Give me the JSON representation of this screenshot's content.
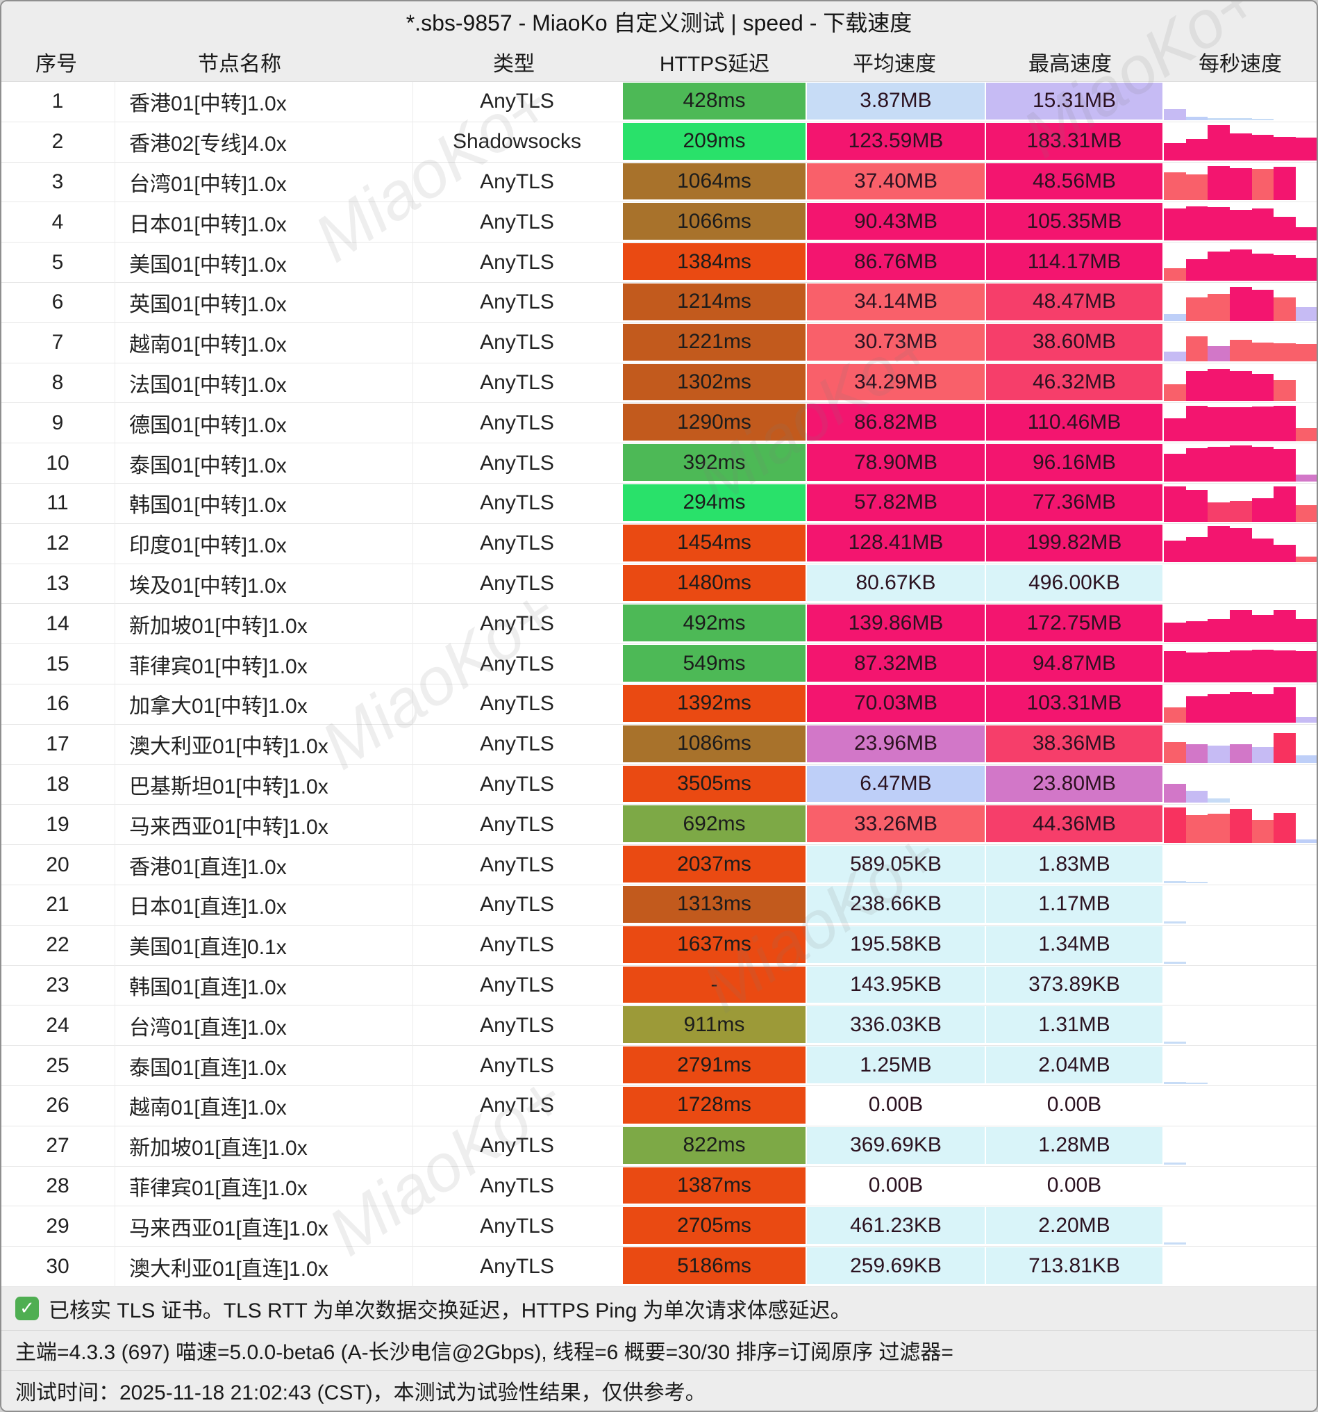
{
  "title": "*.sbs-9857 - MiaoKo 自定义测试 | speed - 下载速度",
  "columns": [
    "序号",
    "节点名称",
    "类型",
    "HTTPS延迟",
    "平均速度",
    "最高速度",
    "每秒速度"
  ],
  "watermark": {
    "text": "MiaoKo+"
  },
  "palette": {
    "g1": "#29e16a",
    "g2": "#4db956",
    "g3": "#7da946",
    "g4": "#9c9a38",
    "brown": "#a8722b",
    "ob": "#c25a1d",
    "red": "#ea4a12",
    "mag": "#f3156f",
    "pink": "#f63e6a",
    "salmon": "#f9606a",
    "crimson": "#f8325f",
    "orchid": "#d277c8",
    "lav": "#c6bbf4",
    "lblue": "#becff8",
    "pblue": "#c7dcf6",
    "cyan": "#d9f4f9"
  },
  "rows": [
    {
      "num": "1",
      "name": "香港01[中转]1.0x",
      "type": "AnyTLS",
      "latency": "428ms",
      "lc": "g2",
      "avg": "3.87MB",
      "ac": "pblue",
      "max": "15.31MB",
      "mc": "lav",
      "spark": [
        [
          "lav",
          0.3
        ],
        [
          "lblue",
          0.09
        ],
        [
          "pblue",
          0.06
        ],
        [
          "pblue",
          0.05
        ],
        [
          "pblue",
          0.04
        ],
        null,
        null
      ]
    },
    {
      "num": "2",
      "name": "香港02[专线]4.0x",
      "type": "Shadowsocks",
      "latency": "209ms",
      "lc": "g1",
      "avg": "123.59MB",
      "ac": "mag",
      "max": "183.31MB",
      "mc": "mag",
      "spark": [
        [
          "mag",
          0.45
        ],
        [
          "mag",
          0.56
        ],
        [
          "mag",
          0.95
        ],
        [
          "mag",
          0.72
        ],
        [
          "mag",
          0.68
        ],
        [
          "mag",
          0.63
        ],
        [
          "mag",
          0.6
        ]
      ]
    },
    {
      "num": "3",
      "name": "台湾01[中转]1.0x",
      "type": "AnyTLS",
      "latency": "1064ms",
      "lc": "brown",
      "avg": "37.40MB",
      "ac": "salmon",
      "max": "48.56MB",
      "mc": "mag",
      "spark": [
        [
          "salmon",
          0.76
        ],
        [
          "salmon",
          0.7
        ],
        [
          "mag",
          0.92
        ],
        [
          "mag",
          0.86
        ],
        [
          "salmon",
          0.84
        ],
        [
          "mag",
          0.9
        ],
        null
      ]
    },
    {
      "num": "4",
      "name": "日本01[中转]1.0x",
      "type": "AnyTLS",
      "latency": "1066ms",
      "lc": "brown",
      "avg": "90.43MB",
      "ac": "mag",
      "max": "105.35MB",
      "mc": "mag",
      "spark": [
        [
          "mag",
          0.86
        ],
        [
          "mag",
          0.92
        ],
        [
          "mag",
          0.9
        ],
        [
          "mag",
          0.82
        ],
        [
          "mag",
          0.86
        ],
        [
          "mag",
          0.64
        ],
        [
          "mag",
          0.35
        ]
      ]
    },
    {
      "num": "5",
      "name": "美国01[中转]1.0x",
      "type": "AnyTLS",
      "latency": "1384ms",
      "lc": "red",
      "avg": "86.76MB",
      "ac": "mag",
      "max": "114.17MB",
      "mc": "mag",
      "spark": [
        [
          "salmon",
          0.34
        ],
        [
          "mag",
          0.58
        ],
        [
          "mag",
          0.78
        ],
        [
          "mag",
          0.84
        ],
        [
          "mag",
          0.73
        ],
        [
          "mag",
          0.68
        ],
        [
          "mag",
          0.62
        ]
      ]
    },
    {
      "num": "6",
      "name": "英国01[中转]1.0x",
      "type": "AnyTLS",
      "latency": "1214ms",
      "lc": "ob",
      "avg": "34.14MB",
      "ac": "salmon",
      "max": "48.47MB",
      "mc": "pink",
      "spark": [
        [
          "lblue",
          0.18
        ],
        [
          "salmon",
          0.62
        ],
        [
          "salmon",
          0.72
        ],
        [
          "mag",
          0.9
        ],
        [
          "mag",
          0.84
        ],
        [
          "salmon",
          0.62
        ],
        [
          "lav",
          0.36
        ]
      ]
    },
    {
      "num": "7",
      "name": "越南01[中转]1.0x",
      "type": "AnyTLS",
      "latency": "1221ms",
      "lc": "ob",
      "avg": "30.73MB",
      "ac": "salmon",
      "max": "38.60MB",
      "mc": "pink",
      "spark": [
        [
          "lav",
          0.26
        ],
        [
          "salmon",
          0.66
        ],
        [
          "orchid",
          0.4
        ],
        [
          "salmon",
          0.56
        ],
        [
          "salmon",
          0.5
        ],
        [
          "salmon",
          0.48
        ],
        [
          "salmon",
          0.46
        ]
      ]
    },
    {
      "num": "8",
      "name": "法国01[中转]1.0x",
      "type": "AnyTLS",
      "latency": "1302ms",
      "lc": "ob",
      "avg": "34.29MB",
      "ac": "salmon",
      "max": "46.32MB",
      "mc": "pink",
      "spark": [
        [
          "salmon",
          0.46
        ],
        [
          "mag",
          0.8
        ],
        [
          "mag",
          0.86
        ],
        [
          "mag",
          0.8
        ],
        [
          "mag",
          0.74
        ],
        [
          "salmon",
          0.56
        ],
        null
      ]
    },
    {
      "num": "9",
      "name": "德国01[中转]1.0x",
      "type": "AnyTLS",
      "latency": "1290ms",
      "lc": "ob",
      "avg": "86.82MB",
      "ac": "mag",
      "max": "110.46MB",
      "mc": "mag",
      "spark": [
        [
          "mag",
          0.62
        ],
        [
          "mag",
          0.95
        ],
        [
          "mag",
          0.92
        ],
        [
          "mag",
          0.92
        ],
        [
          "mag",
          0.94
        ],
        [
          "mag",
          0.95
        ],
        [
          "salmon",
          0.35
        ]
      ]
    },
    {
      "num": "10",
      "name": "泰国01[中转]1.0x",
      "type": "AnyTLS",
      "latency": "392ms",
      "lc": "g2",
      "avg": "78.90MB",
      "ac": "mag",
      "max": "96.16MB",
      "mc": "mag",
      "spark": [
        [
          "mag",
          0.75
        ],
        [
          "mag",
          0.9
        ],
        [
          "mag",
          0.92
        ],
        [
          "mag",
          0.96
        ],
        [
          "mag",
          0.93
        ],
        [
          "mag",
          0.88
        ],
        [
          "orchid",
          0.18
        ]
      ]
    },
    {
      "num": "11",
      "name": "韩国01[中转]1.0x",
      "type": "AnyTLS",
      "latency": "294ms",
      "lc": "g1",
      "avg": "57.82MB",
      "ac": "mag",
      "max": "77.36MB",
      "mc": "mag",
      "spark": [
        [
          "mag",
          0.95
        ],
        [
          "mag",
          0.86
        ],
        [
          "pink",
          0.52
        ],
        [
          "pink",
          0.56
        ],
        [
          "mag",
          0.62
        ],
        [
          "mag",
          0.95
        ],
        [
          "salmon",
          0.45
        ]
      ]
    },
    {
      "num": "12",
      "name": "印度01[中转]1.0x",
      "type": "AnyTLS",
      "latency": "1454ms",
      "lc": "red",
      "avg": "128.41MB",
      "ac": "mag",
      "max": "199.82MB",
      "mc": "mag",
      "spark": [
        [
          "mag",
          0.56
        ],
        [
          "mag",
          0.66
        ],
        [
          "mag",
          0.95
        ],
        [
          "mag",
          0.9
        ],
        [
          "mag",
          0.62
        ],
        [
          "mag",
          0.46
        ],
        [
          "salmon",
          0.15
        ]
      ]
    },
    {
      "num": "13",
      "name": "埃及01[中转]1.0x",
      "type": "AnyTLS",
      "latency": "1480ms",
      "lc": "red",
      "avg": "80.67KB",
      "ac": "cyan",
      "max": "496.00KB",
      "mc": "cyan",
      "spark": []
    },
    {
      "num": "14",
      "name": "新加坡01[中转]1.0x",
      "type": "AnyTLS",
      "latency": "492ms",
      "lc": "g2",
      "avg": "139.86MB",
      "ac": "mag",
      "max": "172.75MB",
      "mc": "mag",
      "spark": [
        [
          "mag",
          0.52
        ],
        [
          "mag",
          0.56
        ],
        [
          "mag",
          0.62
        ],
        [
          "mag",
          0.86
        ],
        [
          "mag",
          0.72
        ],
        [
          "mag",
          0.86
        ],
        [
          "mag",
          0.62
        ]
      ]
    },
    {
      "num": "15",
      "name": "菲律宾01[中转]1.0x",
      "type": "AnyTLS",
      "latency": "549ms",
      "lc": "g2",
      "avg": "87.32MB",
      "ac": "mag",
      "max": "94.87MB",
      "mc": "mag",
      "spark": [
        [
          "mag",
          0.84
        ],
        [
          "mag",
          0.8
        ],
        [
          "mag",
          0.82
        ],
        [
          "mag",
          0.86
        ],
        [
          "mag",
          0.88
        ],
        [
          "mag",
          0.86
        ],
        [
          "mag",
          0.84
        ]
      ]
    },
    {
      "num": "16",
      "name": "加拿大01[中转]1.0x",
      "type": "AnyTLS",
      "latency": "1392ms",
      "lc": "red",
      "avg": "70.03MB",
      "ac": "mag",
      "max": "103.31MB",
      "mc": "mag",
      "spark": [
        [
          "salmon",
          0.4
        ],
        [
          "mag",
          0.7
        ],
        [
          "mag",
          0.76
        ],
        [
          "mag",
          0.82
        ],
        [
          "mag",
          0.76
        ],
        [
          "mag",
          0.95
        ],
        [
          "lav",
          0.14
        ]
      ]
    },
    {
      "num": "17",
      "name": "澳大利亚01[中转]1.0x",
      "type": "AnyTLS",
      "latency": "1086ms",
      "lc": "brown",
      "avg": "23.96MB",
      "ac": "orchid",
      "max": "38.36MB",
      "mc": "pink",
      "spark": [
        [
          "salmon",
          0.55
        ],
        [
          "orchid",
          0.5
        ],
        [
          "lav",
          0.46
        ],
        [
          "orchid",
          0.5
        ],
        [
          "lav",
          0.42
        ],
        [
          "crimson",
          0.8
        ],
        [
          "lblue",
          0.2
        ]
      ]
    },
    {
      "num": "18",
      "name": "巴基斯坦01[中转]1.0x",
      "type": "AnyTLS",
      "latency": "3505ms",
      "lc": "red",
      "avg": "6.47MB",
      "ac": "lblue",
      "max": "23.80MB",
      "mc": "orchid",
      "spark": [
        [
          "orchid",
          0.5
        ],
        [
          "lav",
          0.32
        ],
        [
          "pblue",
          0.12
        ],
        null,
        null,
        null,
        null
      ]
    },
    {
      "num": "19",
      "name": "马来西亚01[中转]1.0x",
      "type": "AnyTLS",
      "latency": "692ms",
      "lc": "g3",
      "avg": "33.26MB",
      "ac": "salmon",
      "max": "44.36MB",
      "mc": "pink",
      "spark": [
        [
          "crimson",
          0.95
        ],
        [
          "salmon",
          0.74
        ],
        [
          "salmon",
          0.78
        ],
        [
          "crimson",
          0.92
        ],
        [
          "salmon",
          0.62
        ],
        [
          "crimson",
          0.8
        ],
        [
          "lblue",
          0.1
        ]
      ]
    },
    {
      "num": "20",
      "name": "香港01[直连]1.0x",
      "type": "AnyTLS",
      "latency": "2037ms",
      "lc": "red",
      "avg": "589.05KB",
      "ac": "cyan",
      "max": "1.83MB",
      "mc": "cyan",
      "spark": [
        [
          "pblue",
          0.06
        ],
        [
          "pblue",
          0.04
        ],
        null,
        null,
        null,
        null,
        null
      ]
    },
    {
      "num": "21",
      "name": "日本01[直连]1.0x",
      "type": "AnyTLS",
      "latency": "1313ms",
      "lc": "ob",
      "avg": "238.66KB",
      "ac": "cyan",
      "max": "1.17MB",
      "mc": "cyan",
      "spark": [
        [
          "pblue",
          0.05
        ],
        null,
        null,
        null,
        null,
        null,
        null
      ]
    },
    {
      "num": "22",
      "name": "美国01[直连]0.1x",
      "type": "AnyTLS",
      "latency": "1637ms",
      "lc": "red",
      "avg": "195.58KB",
      "ac": "cyan",
      "max": "1.34MB",
      "mc": "cyan",
      "spark": [
        [
          "pblue",
          0.05
        ],
        null,
        null,
        null,
        null,
        null,
        null
      ]
    },
    {
      "num": "23",
      "name": "韩国01[直连]1.0x",
      "type": "AnyTLS",
      "latency": "-",
      "lc": "red",
      "avg": "143.95KB",
      "ac": "cyan",
      "max": "373.89KB",
      "mc": "cyan",
      "spark": []
    },
    {
      "num": "24",
      "name": "台湾01[直连]1.0x",
      "type": "AnyTLS",
      "latency": "911ms",
      "lc": "g4",
      "avg": "336.03KB",
      "ac": "cyan",
      "max": "1.31MB",
      "mc": "cyan",
      "spark": [
        [
          "pblue",
          0.06
        ],
        null,
        null,
        null,
        null,
        null,
        null
      ]
    },
    {
      "num": "25",
      "name": "泰国01[直连]1.0x",
      "type": "AnyTLS",
      "latency": "2791ms",
      "lc": "red",
      "avg": "1.25MB",
      "ac": "cyan",
      "max": "2.04MB",
      "mc": "cyan",
      "spark": [
        [
          "pblue",
          0.06
        ],
        [
          "pblue",
          0.04
        ],
        null,
        null,
        null,
        null,
        null
      ]
    },
    {
      "num": "26",
      "name": "越南01[直连]1.0x",
      "type": "AnyTLS",
      "latency": "1728ms",
      "lc": "red",
      "avg": "0.00B",
      "ac": "",
      "max": "0.00B",
      "mc": "",
      "spark": []
    },
    {
      "num": "27",
      "name": "新加坡01[直连]1.0x",
      "type": "AnyTLS",
      "latency": "822ms",
      "lc": "g3",
      "avg": "369.69KB",
      "ac": "cyan",
      "max": "1.28MB",
      "mc": "cyan",
      "spark": [
        [
          "pblue",
          0.05
        ],
        null,
        null,
        null,
        null,
        null,
        null
      ]
    },
    {
      "num": "28",
      "name": "菲律宾01[直连]1.0x",
      "type": "AnyTLS",
      "latency": "1387ms",
      "lc": "red",
      "avg": "0.00B",
      "ac": "",
      "max": "0.00B",
      "mc": "",
      "spark": []
    },
    {
      "num": "29",
      "name": "马来西亚01[直连]1.0x",
      "type": "AnyTLS",
      "latency": "2705ms",
      "lc": "red",
      "avg": "461.23KB",
      "ac": "cyan",
      "max": "2.20MB",
      "mc": "cyan",
      "spark": [
        [
          "pblue",
          0.05
        ],
        null,
        null,
        null,
        null,
        null,
        null
      ]
    },
    {
      "num": "30",
      "name": "澳大利亚01[直连]1.0x",
      "type": "AnyTLS",
      "latency": "5186ms",
      "lc": "red",
      "avg": "259.69KB",
      "ac": "cyan",
      "max": "713.81KB",
      "mc": "cyan",
      "spark": []
    }
  ],
  "footer": {
    "line1": "已核实 TLS 证书。TLS RTT 为单次数据交换延迟，HTTPS Ping 为单次请求体感延迟。",
    "line2": "主端=4.3.3 (697) 喵速=5.0.0-beta6 (A-长沙电信@2Gbps), 线程=6 概要=30/30 排序=订阅原序 过滤器=",
    "line3": "测试时间：2025-11-18 21:02:43 (CST)，本测试为试验性结果，仅供参考。"
  }
}
